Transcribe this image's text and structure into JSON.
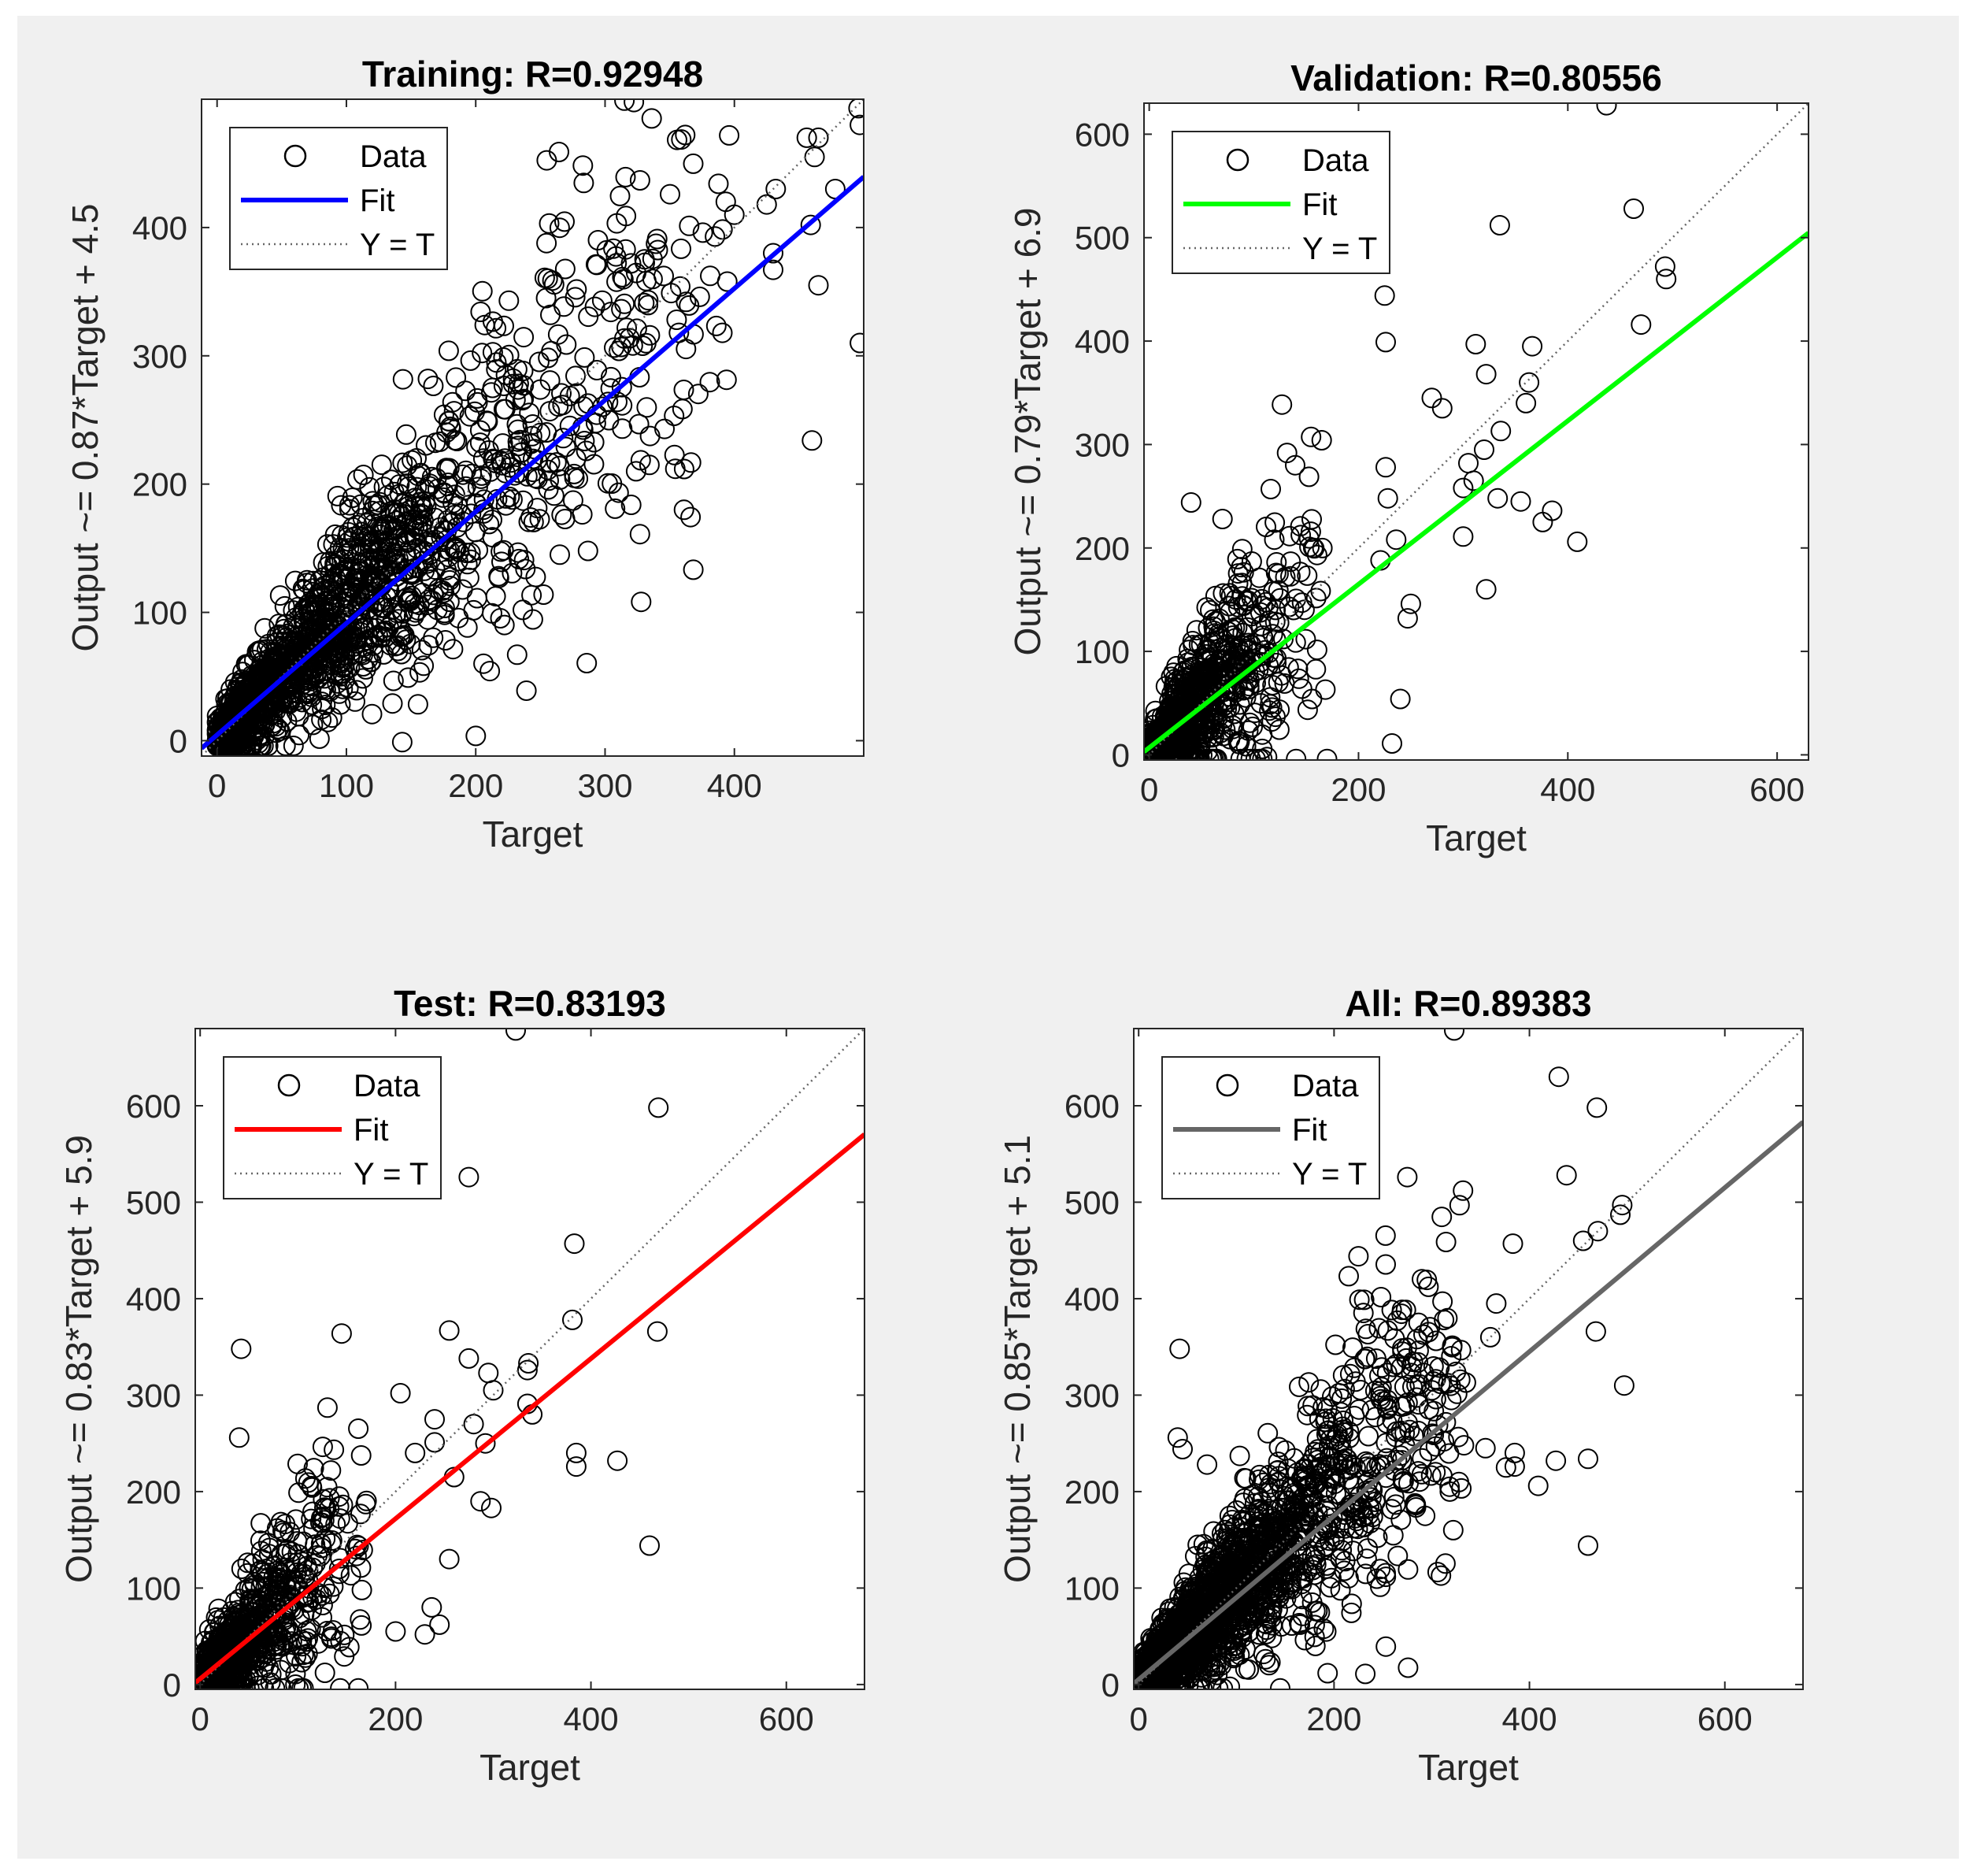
{
  "figure": {
    "background": "#f0f0f0",
    "plot_background": "#ffffff",
    "marker_color": "#000000"
  },
  "legend_labels": {
    "data": "Data",
    "fit": "Fit",
    "identity": "Y = T"
  },
  "chart_data": [
    {
      "type": "scatter",
      "id": "training",
      "title": "Training: R=0.92948",
      "xlabel": "Target",
      "ylabel": "Output ~= 0.87*Target + 4.5",
      "xlim": [
        -12,
        500
      ],
      "ylim": [
        -12,
        500
      ],
      "xticks": [
        0,
        100,
        200,
        300,
        400
      ],
      "yticks": [
        0,
        100,
        200,
        300,
        400
      ],
      "fit": {
        "slope": 0.87,
        "intercept": 4.5,
        "color": "#0000ff"
      },
      "legend_placement": "top-left",
      "n_points": 1700,
      "max_target": 400,
      "spread": 0.26,
      "outliers": [
        [
          497,
          480
        ],
        [
          496,
          493
        ],
        [
          465,
          470
        ],
        [
          462,
          455
        ],
        [
          478,
          430
        ],
        [
          459,
          402
        ],
        [
          465,
          355
        ],
        [
          460,
          234
        ],
        [
          497,
          310
        ],
        [
          425,
          418
        ],
        [
          385,
          393
        ],
        [
          430,
          367
        ],
        [
          430,
          380
        ],
        [
          432,
          430
        ],
        [
          456,
          470
        ],
        [
          400,
          410
        ],
        [
          163,
          282
        ],
        [
          213,
          275
        ],
        [
          206,
          60
        ],
        [
          232,
          67
        ],
        [
          324,
          210
        ],
        [
          346,
          243
        ],
        [
          361,
          180
        ],
        [
          327,
          161
        ],
        [
          265,
          145
        ]
      ]
    },
    {
      "type": "scatter",
      "id": "validation",
      "title": "Validation: R=0.80556",
      "xlabel": "Target",
      "ylabel": "Output ~= 0.79*Target + 6.9",
      "xlim": [
        -5,
        630
      ],
      "ylim": [
        -5,
        630
      ],
      "xticks": [
        0,
        200,
        400,
        600
      ],
      "yticks": [
        0,
        100,
        200,
        300,
        400,
        500,
        600
      ],
      "fit": {
        "slope": 0.79,
        "intercept": 6.9,
        "color": "#00ff00"
      },
      "legend_placement": "top-left",
      "n_points": 900,
      "max_target": 170,
      "spread": 0.45,
      "outliers": [
        [
          437,
          628
        ],
        [
          463,
          528
        ],
        [
          493,
          472
        ],
        [
          494,
          460
        ],
        [
          470,
          416
        ],
        [
          335,
          512
        ],
        [
          225,
          444
        ],
        [
          226,
          399
        ],
        [
          312,
          397
        ],
        [
          322,
          368
        ],
        [
          366,
          395
        ],
        [
          363,
          360
        ],
        [
          360,
          340
        ],
        [
          270,
          345
        ],
        [
          280,
          335
        ],
        [
          336,
          313
        ],
        [
          320,
          295
        ],
        [
          305,
          282
        ],
        [
          310,
          265
        ],
        [
          300,
          258
        ],
        [
          333,
          248
        ],
        [
          355,
          245
        ],
        [
          376,
          225
        ],
        [
          385,
          236
        ],
        [
          409,
          206
        ],
        [
          300,
          211
        ],
        [
          322,
          160
        ],
        [
          226,
          278
        ],
        [
          228,
          248
        ],
        [
          236,
          208
        ],
        [
          221,
          188
        ],
        [
          232,
          11
        ],
        [
          240,
          54
        ],
        [
          247,
          132
        ],
        [
          250,
          146
        ],
        [
          40,
          244
        ],
        [
          70,
          228
        ]
      ]
    },
    {
      "type": "scatter",
      "id": "test",
      "title": "Test: R=0.83193",
      "xlabel": "Target",
      "ylabel": "Output ~= 0.83*Target + 5.9",
      "xlim": [
        -5,
        680
      ],
      "ylim": [
        -5,
        680
      ],
      "xticks": [
        0,
        200,
        400,
        600
      ],
      "yticks": [
        0,
        100,
        200,
        300,
        400,
        500,
        600
      ],
      "fit": {
        "slope": 0.83,
        "intercept": 5.9,
        "color": "#ff0000"
      },
      "legend_placement": "top-left",
      "n_points": 900,
      "max_target": 170,
      "spread": 0.45,
      "outliers": [
        [
          323,
          678
        ],
        [
          469,
          598
        ],
        [
          275,
          526
        ],
        [
          383,
          457
        ],
        [
          381,
          378
        ],
        [
          336,
          333
        ],
        [
          335,
          326
        ],
        [
          340,
          280
        ],
        [
          335,
          291
        ],
        [
          255,
          367
        ],
        [
          275,
          338
        ],
        [
          295,
          323
        ],
        [
          300,
          305
        ],
        [
          205,
          302
        ],
        [
          280,
          270
        ],
        [
          240,
          275
        ],
        [
          292,
          250
        ],
        [
          260,
          215
        ],
        [
          287,
          190
        ],
        [
          298,
          183
        ],
        [
          385,
          240
        ],
        [
          385,
          226
        ],
        [
          427,
          232
        ],
        [
          460,
          144
        ],
        [
          468,
          366
        ],
        [
          42,
          348
        ],
        [
          40,
          256
        ],
        [
          240,
          251
        ],
        [
          237,
          80
        ],
        [
          230,
          52
        ],
        [
          245,
          62
        ],
        [
          200,
          55
        ],
        [
          255,
          130
        ],
        [
          220,
          240
        ]
      ]
    },
    {
      "type": "scatter",
      "id": "all",
      "title": "All: R=0.89383",
      "xlabel": "Target",
      "ylabel": "Output ~= 0.85*Target + 5.1",
      "xlim": [
        -5,
        680
      ],
      "ylim": [
        -5,
        680
      ],
      "xticks": [
        0,
        200,
        400,
        600
      ],
      "yticks": [
        0,
        100,
        200,
        300,
        400,
        500,
        600
      ],
      "fit": {
        "slope": 0.85,
        "intercept": 5.1,
        "color": "#666666"
      },
      "legend_placement": "top-left",
      "n_points": 2100,
      "max_target": 330,
      "spread": 0.3,
      "outliers": [
        [
          323,
          678
        ],
        [
          430,
          630
        ],
        [
          469,
          598
        ],
        [
          438,
          528
        ],
        [
          275,
          526
        ],
        [
          332,
          512
        ],
        [
          495,
          497
        ],
        [
          493,
          487
        ],
        [
          470,
          470
        ],
        [
          455,
          460
        ],
        [
          383,
          457
        ],
        [
          225,
          444
        ],
        [
          226,
          399
        ],
        [
          311,
          397
        ],
        [
          366,
          395
        ],
        [
          360,
          360
        ],
        [
          255,
          367
        ],
        [
          274,
          338
        ],
        [
          292,
          323
        ],
        [
          300,
          305
        ],
        [
          205,
          302
        ],
        [
          270,
          345
        ],
        [
          335,
          313
        ],
        [
          320,
          295
        ],
        [
          385,
          240
        ],
        [
          385,
          226
        ],
        [
          427,
          232
        ],
        [
          460,
          234
        ],
        [
          409,
          206
        ],
        [
          460,
          144
        ],
        [
          468,
          366
        ],
        [
          42,
          348
        ],
        [
          40,
          256
        ],
        [
          45,
          244
        ],
        [
          70,
          228
        ],
        [
          232,
          11
        ],
        [
          497,
          310
        ],
        [
          333,
          248
        ],
        [
          355,
          245
        ],
        [
          376,
          225
        ],
        [
          322,
          160
        ]
      ]
    }
  ]
}
